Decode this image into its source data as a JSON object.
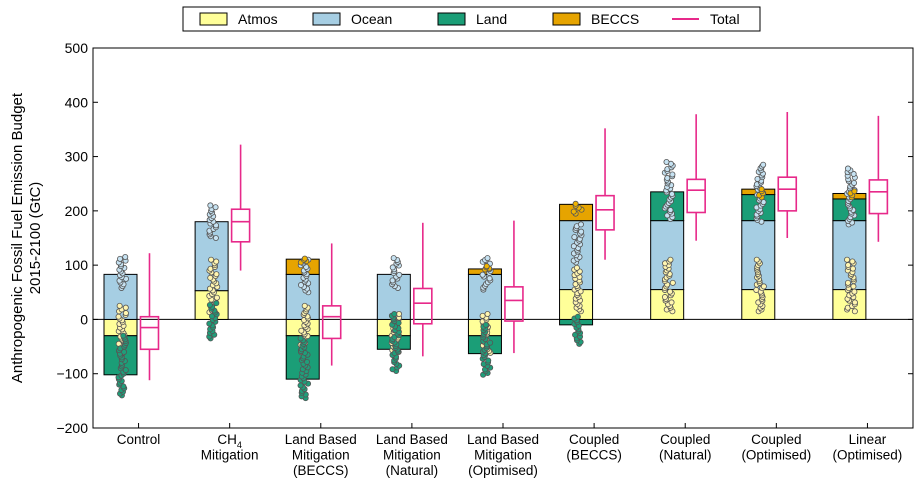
{
  "chart_data": {
    "type": "bar",
    "ylabel_lines": [
      "Anthropogenic Fossil Fuel Emission Budget",
      "2015-2100 (GtC)"
    ],
    "ylim": [
      -200,
      500
    ],
    "yticks": [
      "500",
      "400",
      "300",
      "200",
      "100",
      "0",
      "−100",
      "−200"
    ],
    "ytick_values": [
      500,
      400,
      300,
      200,
      100,
      0,
      -100,
      -200
    ],
    "legend_position": "top-center",
    "legend": [
      {
        "name": "Atmos",
        "kind": "patch",
        "color": "#ffff99"
      },
      {
        "name": "Ocean",
        "kind": "patch",
        "color": "#a6cee3"
      },
      {
        "name": "Land",
        "kind": "patch",
        "color": "#1b9e77"
      },
      {
        "name": "BECCS",
        "kind": "patch",
        "color": "#e6a400"
      },
      {
        "name": "Total",
        "kind": "line",
        "color": "#e7298a"
      }
    ],
    "colors": {
      "atmos": "#ffff99",
      "ocean": "#a6cee3",
      "land": "#1b9e77",
      "beccs": "#e6a400",
      "total": "#e7298a"
    },
    "categories": [
      {
        "lines": [
          "Control"
        ],
        "sub": ""
      },
      {
        "lines": [
          "CH",
          "Mitigation"
        ],
        "sub": "4"
      },
      {
        "lines": [
          "Land Based",
          "Mitigation",
          "(BECCS)"
        ],
        "sub": ""
      },
      {
        "lines": [
          "Land Based",
          "Mitigation",
          "(Natural)"
        ],
        "sub": ""
      },
      {
        "lines": [
          "Land Based",
          "Mitigation",
          "(Optimised)"
        ],
        "sub": ""
      },
      {
        "lines": [
          "Coupled",
          "(BECCS)"
        ],
        "sub": ""
      },
      {
        "lines": [
          "Coupled",
          "(Natural)"
        ],
        "sub": ""
      },
      {
        "lines": [
          "Coupled",
          "(Optimised)"
        ],
        "sub": ""
      },
      {
        "lines": [
          "Linear",
          "(Optimised)"
        ],
        "sub": ""
      }
    ],
    "series": [
      {
        "name": "Atmos",
        "values": [
          -30,
          53,
          -30,
          -30,
          -30,
          55,
          55,
          55,
          55
        ]
      },
      {
        "name": "Ocean",
        "values": [
          83,
          127,
          83,
          83,
          83,
          127,
          127,
          127,
          127
        ]
      },
      {
        "name": "Land",
        "values": [
          -72,
          0,
          -80,
          -25,
          -33,
          -10,
          53,
          48,
          40
        ]
      },
      {
        "name": "BECCS",
        "values": [
          0,
          0,
          28,
          0,
          10,
          30,
          0,
          10,
          10
        ]
      }
    ],
    "total_boxplots": [
      {
        "whisker_low": -112,
        "q1": -55,
        "median": -15,
        "q3": 5,
        "whisker_high": 122
      },
      {
        "whisker_low": 90,
        "q1": 143,
        "median": 180,
        "q3": 203,
        "whisker_high": 322
      },
      {
        "whisker_low": -85,
        "q1": -35,
        "median": 5,
        "q3": 25,
        "whisker_high": 140
      },
      {
        "whisker_low": -68,
        "q1": -8,
        "median": 30,
        "q3": 57,
        "whisker_high": 178
      },
      {
        "whisker_low": -62,
        "q1": -3,
        "median": 35,
        "q3": 60,
        "whisker_high": 182
      },
      {
        "whisker_low": 110,
        "q1": 165,
        "median": 202,
        "q3": 228,
        "whisker_high": 352
      },
      {
        "whisker_low": 145,
        "q1": 197,
        "median": 238,
        "q3": 258,
        "whisker_high": 378
      },
      {
        "whisker_low": 150,
        "q1": 200,
        "median": 240,
        "q3": 262,
        "whisker_high": 382
      },
      {
        "whisker_low": 143,
        "q1": 195,
        "median": 235,
        "q3": 257,
        "whisker_high": 375
      }
    ],
    "point_ranges": [
      {
        "atmos": [
          -65,
          25
        ],
        "ocean": [
          58,
          115
        ],
        "land": [
          -140,
          -30
        ],
        "beccs": null
      },
      {
        "atmos": [
          10,
          110
        ],
        "ocean": [
          150,
          210
        ],
        "land": [
          -35,
          30
        ],
        "beccs": null
      },
      {
        "atmos": [
          -60,
          25
        ],
        "ocean": [
          50,
          110
        ],
        "land": [
          -145,
          -35
        ],
        "beccs": [
          105,
          112
        ]
      },
      {
        "atmos": [
          -60,
          10
        ],
        "ocean": [
          58,
          113
        ],
        "land": [
          -95,
          10
        ],
        "beccs": null
      },
      {
        "atmos": [
          -65,
          10
        ],
        "ocean": [
          55,
          113
        ],
        "land": [
          -102,
          -10
        ],
        "beccs": [
          92,
          98
        ]
      },
      {
        "atmos": [
          15,
          95
        ],
        "ocean": [
          105,
          175
        ],
        "land": [
          -45,
          5
        ],
        "beccs": [
          195,
          213
        ]
      },
      {
        "atmos": [
          15,
          110
        ],
        "ocean": [
          185,
          290
        ],
        "land": null,
        "beccs": null
      },
      {
        "atmos": [
          15,
          110
        ],
        "ocean": [
          180,
          285
        ],
        "land": null,
        "beccs": [
          225,
          240
        ]
      },
      {
        "atmos": [
          15,
          110
        ],
        "ocean": [
          175,
          278
        ],
        "land": null,
        "beccs": [
          225,
          236
        ]
      }
    ]
  }
}
